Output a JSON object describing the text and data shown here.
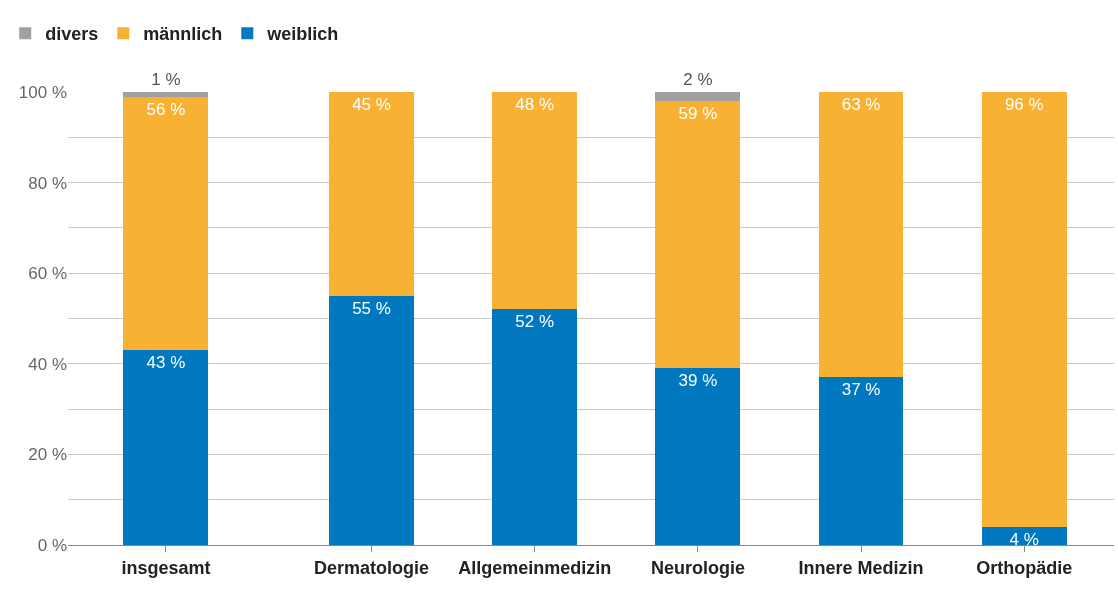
{
  "chart_data": {
    "type": "bar",
    "stacked": true,
    "categories": [
      "insgesamt",
      "Dermatologie",
      "Allgemeinmedizin",
      "Neurologie",
      "Innere Medizin",
      "Orthopädie"
    ],
    "series": [
      {
        "name": "weiblich",
        "color": "#0078c0",
        "values": [
          43,
          55,
          52,
          39,
          37,
          4
        ],
        "value_labels": [
          "43 %",
          "55 %",
          "52 %",
          "39 %",
          "37 %",
          "4 %"
        ]
      },
      {
        "name": "männlich",
        "color": "#f8b133",
        "values": [
          56,
          45,
          48,
          59,
          63,
          96
        ],
        "value_labels": [
          "56 %",
          "45 %",
          "48 %",
          "59 %",
          "63 %",
          "96 %"
        ]
      },
      {
        "name": "divers",
        "color": "#a0a0a0",
        "values": [
          1,
          0,
          0,
          2,
          0,
          0
        ],
        "value_labels": [
          "1 %",
          null,
          null,
          "2 %",
          null,
          null
        ]
      }
    ],
    "ylim": [
      0,
      100
    ],
    "yticks": [
      {
        "value": 0,
        "label": "0 %"
      },
      {
        "value": 10,
        "label": null
      },
      {
        "value": 20,
        "label": "20 %"
      },
      {
        "value": 30,
        "label": null
      },
      {
        "value": 40,
        "label": "40 %"
      },
      {
        "value": 50,
        "label": null
      },
      {
        "value": 60,
        "label": "60 %"
      },
      {
        "value": 70,
        "label": null
      },
      {
        "value": 80,
        "label": "80 %"
      },
      {
        "value": 90,
        "label": null
      },
      {
        "value": 100,
        "label": "100 %"
      }
    ],
    "grid": "y",
    "legend": "top left"
  }
}
